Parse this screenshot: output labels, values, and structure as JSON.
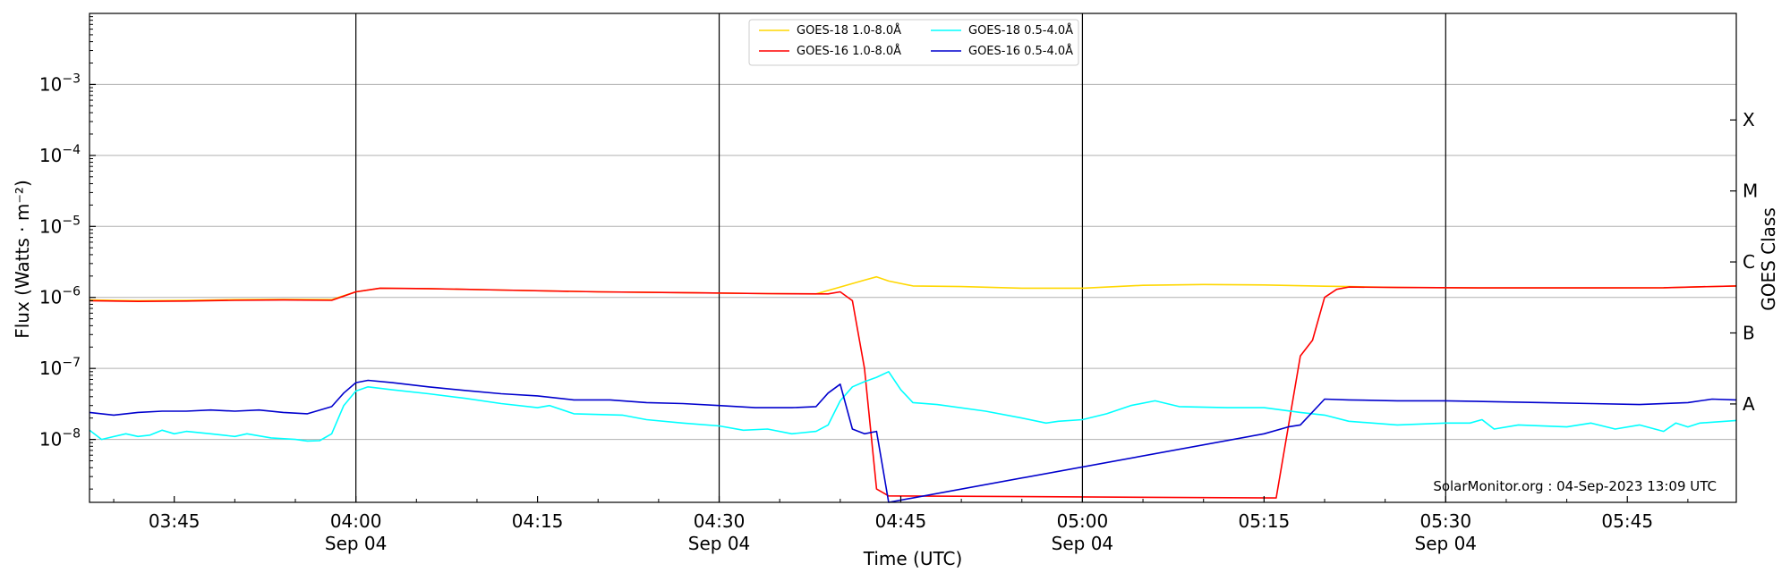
{
  "chart_data": {
    "type": "line",
    "xlabel": "Time (UTC)",
    "ylabel": "Flux (Watts · m⁻²)",
    "ylabel_right": "GOES Class",
    "credit": "SolarMonitor.org : 04-Sep-2023 13:09 UTC",
    "xlim": [
      "03:38",
      "05:54"
    ],
    "ylim": [
      1.3e-09,
      0.01
    ],
    "yscale": "log",
    "grid": "horizontal",
    "legend_position": "top-center",
    "x_ticks": [
      {
        "time": "03:45",
        "label": "03:45"
      },
      {
        "time": "04:00",
        "label": "04:00",
        "sub": "Sep 04",
        "major": true
      },
      {
        "time": "04:15",
        "label": "04:15"
      },
      {
        "time": "04:30",
        "label": "04:30",
        "sub": "Sep 04",
        "major": true
      },
      {
        "time": "04:45",
        "label": "04:45"
      },
      {
        "time": "05:00",
        "label": "05:00",
        "sub": "Sep 04",
        "major": true
      },
      {
        "time": "05:15",
        "label": "05:15"
      },
      {
        "time": "05:30",
        "label": "05:30",
        "sub": "Sep 04",
        "major": true
      },
      {
        "time": "05:45",
        "label": "05:45"
      }
    ],
    "y_ticks": [
      {
        "value": 1e-08,
        "exp": "-8"
      },
      {
        "value": 1e-07,
        "exp": "-7"
      },
      {
        "value": 1e-06,
        "exp": "-6"
      },
      {
        "value": 1e-05,
        "exp": "-5"
      },
      {
        "value": 0.0001,
        "exp": "-4"
      },
      {
        "value": 0.001,
        "exp": "-3"
      }
    ],
    "goes_classes": [
      {
        "label": "A",
        "value": 3.16e-08
      },
      {
        "label": "B",
        "value": 3.16e-07
      },
      {
        "label": "C",
        "value": 3.16e-06
      },
      {
        "label": "M",
        "value": 3.16e-05
      },
      {
        "label": "X",
        "value": 0.000316
      }
    ],
    "series": [
      {
        "name": "GOES-18 1.0-8.0Å",
        "color": "#FFD700",
        "points": [
          [
            "03:38",
            9.2e-07
          ],
          [
            "03:42",
            9e-07
          ],
          [
            "03:46",
            9.1e-07
          ],
          [
            "03:50",
            9.3e-07
          ],
          [
            "03:54",
            9.4e-07
          ],
          [
            "03:58",
            9.3e-07
          ],
          [
            "04:00",
            1.2e-06
          ],
          [
            "04:02",
            1.35e-06
          ],
          [
            "04:06",
            1.33e-06
          ],
          [
            "04:12",
            1.27e-06
          ],
          [
            "04:20",
            1.2e-06
          ],
          [
            "04:28",
            1.16e-06
          ],
          [
            "04:34",
            1.13e-06
          ],
          [
            "04:38",
            1.12e-06
          ],
          [
            "04:40",
            1.4e-06
          ],
          [
            "04:42",
            1.75e-06
          ],
          [
            "04:43",
            1.95e-06
          ],
          [
            "04:44",
            1.7e-06
          ],
          [
            "04:46",
            1.45e-06
          ],
          [
            "04:50",
            1.42e-06
          ],
          [
            "04:55",
            1.35e-06
          ],
          [
            "05:00",
            1.35e-06
          ],
          [
            "05:05",
            1.48e-06
          ],
          [
            "05:10",
            1.52e-06
          ],
          [
            "05:15",
            1.5e-06
          ],
          [
            "05:20",
            1.44e-06
          ],
          [
            "05:22",
            1.42e-06
          ],
          [
            "05:26",
            1.38e-06
          ],
          [
            "05:34",
            1.36e-06
          ],
          [
            "05:40",
            1.36e-06
          ],
          [
            "05:48",
            1.37e-06
          ],
          [
            "05:54",
            1.45e-06
          ]
        ]
      },
      {
        "name": "GOES-16 1.0-8.0Å",
        "color": "#FF0000",
        "points": [
          [
            "03:38",
            9e-07
          ],
          [
            "03:42",
            8.8e-07
          ],
          [
            "03:46",
            8.9e-07
          ],
          [
            "03:50",
            9.1e-07
          ],
          [
            "03:54",
            9.2e-07
          ],
          [
            "03:58",
            9.1e-07
          ],
          [
            "04:00",
            1.2e-06
          ],
          [
            "04:02",
            1.35e-06
          ],
          [
            "04:06",
            1.33e-06
          ],
          [
            "04:12",
            1.27e-06
          ],
          [
            "04:20",
            1.2e-06
          ],
          [
            "04:28",
            1.16e-06
          ],
          [
            "04:34",
            1.13e-06
          ],
          [
            "04:39",
            1.12e-06
          ],
          [
            "04:40",
            1.2e-06
          ],
          [
            "04:41",
            9e-07
          ],
          [
            "04:42",
            1e-07
          ],
          [
            "04:43",
            2e-09
          ],
          [
            "04:44",
            1.6e-09
          ],
          [
            "05:16",
            1.5e-09
          ],
          [
            "05:18",
            1.5e-07
          ],
          [
            "05:19",
            2.5e-07
          ],
          [
            "05:20",
            1e-06
          ],
          [
            "05:21",
            1.3e-06
          ],
          [
            "05:22",
            1.4e-06
          ],
          [
            "05:26",
            1.38e-06
          ],
          [
            "05:34",
            1.36e-06
          ],
          [
            "05:40",
            1.36e-06
          ],
          [
            "05:48",
            1.37e-06
          ],
          [
            "05:54",
            1.45e-06
          ]
        ]
      },
      {
        "name": "GOES-18 0.5-4.0Å",
        "color": "#00FFFF",
        "points": [
          [
            "03:38",
            1.35e-08
          ],
          [
            "03:39",
            1e-08
          ],
          [
            "03:41",
            1.2e-08
          ],
          [
            "03:42",
            1.1e-08
          ],
          [
            "03:43",
            1.15e-08
          ],
          [
            "03:44",
            1.35e-08
          ],
          [
            "03:45",
            1.2e-08
          ],
          [
            "03:46",
            1.3e-08
          ],
          [
            "03:48",
            1.2e-08
          ],
          [
            "03:50",
            1.1e-08
          ],
          [
            "03:51",
            1.2e-08
          ],
          [
            "03:53",
            1.05e-08
          ],
          [
            "03:55",
            1e-08
          ],
          [
            "03:56",
            9.5e-09
          ],
          [
            "03:57",
            9.6e-09
          ],
          [
            "03:58",
            1.2e-08
          ],
          [
            "03:59",
            3e-08
          ],
          [
            "04:00",
            4.8e-08
          ],
          [
            "04:01",
            5.5e-08
          ],
          [
            "04:03",
            5e-08
          ],
          [
            "04:06",
            4.4e-08
          ],
          [
            "04:09",
            3.8e-08
          ],
          [
            "04:12",
            3.2e-08
          ],
          [
            "04:15",
            2.8e-08
          ],
          [
            "04:16",
            3e-08
          ],
          [
            "04:18",
            2.3e-08
          ],
          [
            "04:22",
            2.2e-08
          ],
          [
            "04:24",
            1.9e-08
          ],
          [
            "04:27",
            1.7e-08
          ],
          [
            "04:30",
            1.55e-08
          ],
          [
            "04:32",
            1.35e-08
          ],
          [
            "04:34",
            1.4e-08
          ],
          [
            "04:36",
            1.2e-08
          ],
          [
            "04:38",
            1.3e-08
          ],
          [
            "04:39",
            1.6e-08
          ],
          [
            "04:40",
            3.5e-08
          ],
          [
            "04:41",
            5.5e-08
          ],
          [
            "04:42",
            6.5e-08
          ],
          [
            "04:43",
            7.5e-08
          ],
          [
            "04:44",
            9e-08
          ],
          [
            "04:45",
            5e-08
          ],
          [
            "04:46",
            3.3e-08
          ],
          [
            "04:48",
            3.1e-08
          ],
          [
            "04:52",
            2.5e-08
          ],
          [
            "04:55",
            2e-08
          ],
          [
            "04:57",
            1.7e-08
          ],
          [
            "04:58",
            1.8e-08
          ],
          [
            "05:00",
            1.9e-08
          ],
          [
            "05:02",
            2.3e-08
          ],
          [
            "05:04",
            3e-08
          ],
          [
            "05:06",
            3.5e-08
          ],
          [
            "05:08",
            2.9e-08
          ],
          [
            "05:12",
            2.8e-08
          ],
          [
            "05:15",
            2.8e-08
          ],
          [
            "05:18",
            2.4e-08
          ],
          [
            "05:20",
            2.2e-08
          ],
          [
            "05:22",
            1.8e-08
          ],
          [
            "05:26",
            1.6e-08
          ],
          [
            "05:30",
            1.7e-08
          ],
          [
            "05:32",
            1.7e-08
          ],
          [
            "05:33",
            1.9e-08
          ],
          [
            "05:34",
            1.4e-08
          ],
          [
            "05:36",
            1.6e-08
          ],
          [
            "05:40",
            1.5e-08
          ],
          [
            "05:42",
            1.7e-08
          ],
          [
            "05:44",
            1.4e-08
          ],
          [
            "05:46",
            1.6e-08
          ],
          [
            "05:48",
            1.3e-08
          ],
          [
            "05:49",
            1.7e-08
          ],
          [
            "05:50",
            1.5e-08
          ],
          [
            "05:51",
            1.7e-08
          ],
          [
            "05:54",
            1.85e-08
          ]
        ]
      },
      {
        "name": "GOES-16 0.5-4.0Å",
        "color": "#0000CD",
        "points": [
          [
            "03:38",
            2.4e-08
          ],
          [
            "03:40",
            2.2e-08
          ],
          [
            "03:42",
            2.4e-08
          ],
          [
            "03:44",
            2.5e-08
          ],
          [
            "03:46",
            2.5e-08
          ],
          [
            "03:48",
            2.6e-08
          ],
          [
            "03:50",
            2.5e-08
          ],
          [
            "03:52",
            2.6e-08
          ],
          [
            "03:54",
            2.4e-08
          ],
          [
            "03:56",
            2.3e-08
          ],
          [
            "03:58",
            2.9e-08
          ],
          [
            "03:59",
            4.5e-08
          ],
          [
            "04:00",
            6.3e-08
          ],
          [
            "04:01",
            6.8e-08
          ],
          [
            "04:03",
            6.3e-08
          ],
          [
            "04:06",
            5.5e-08
          ],
          [
            "04:09",
            4.9e-08
          ],
          [
            "04:12",
            4.4e-08
          ],
          [
            "04:15",
            4.1e-08
          ],
          [
            "04:18",
            3.6e-08
          ],
          [
            "04:21",
            3.6e-08
          ],
          [
            "04:24",
            3.3e-08
          ],
          [
            "04:27",
            3.2e-08
          ],
          [
            "04:30",
            3e-08
          ],
          [
            "04:33",
            2.8e-08
          ],
          [
            "04:36",
            2.8e-08
          ],
          [
            "04:38",
            2.9e-08
          ],
          [
            "04:39",
            4.5e-08
          ],
          [
            "04:40",
            6e-08
          ],
          [
            "04:41",
            1.4e-08
          ],
          [
            "04:42",
            1.2e-08
          ],
          [
            "04:43",
            1.3e-08
          ],
          [
            "04:44",
            1.3e-09
          ],
          [
            "05:15",
            1.2e-08
          ],
          [
            "05:17",
            1.5e-08
          ],
          [
            "05:18",
            1.6e-08
          ],
          [
            "05:20",
            3.7e-08
          ],
          [
            "05:22",
            3.6e-08
          ],
          [
            "05:26",
            3.5e-08
          ],
          [
            "05:30",
            3.5e-08
          ],
          [
            "05:34",
            3.4e-08
          ],
          [
            "05:38",
            3.3e-08
          ],
          [
            "05:42",
            3.2e-08
          ],
          [
            "05:46",
            3.1e-08
          ],
          [
            "05:50",
            3.3e-08
          ],
          [
            "05:52",
            3.7e-08
          ],
          [
            "05:54",
            3.6e-08
          ]
        ]
      }
    ]
  }
}
